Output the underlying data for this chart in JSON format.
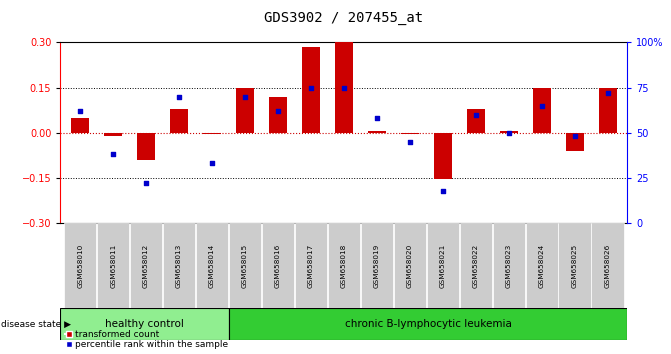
{
  "title": "GDS3902 / 207455_at",
  "samples": [
    "GSM658010",
    "GSM658011",
    "GSM658012",
    "GSM658013",
    "GSM658014",
    "GSM658015",
    "GSM658016",
    "GSM658017",
    "GSM658018",
    "GSM658019",
    "GSM658020",
    "GSM658021",
    "GSM658022",
    "GSM658023",
    "GSM658024",
    "GSM658025",
    "GSM658026"
  ],
  "red_values": [
    0.05,
    -0.01,
    -0.09,
    0.08,
    -0.005,
    0.15,
    0.12,
    0.285,
    0.3,
    0.005,
    -0.005,
    -0.155,
    0.08,
    0.005,
    0.15,
    -0.06,
    0.15
  ],
  "blue_values": [
    62,
    38,
    22,
    70,
    33,
    70,
    62,
    75,
    75,
    58,
    45,
    18,
    60,
    50,
    65,
    48,
    72
  ],
  "healthy_count": 5,
  "leukemia_count": 12,
  "healthy_label": "healthy control",
  "leukemia_label": "chronic B-lymphocytic leukemia",
  "disease_state_label": "disease state",
  "legend_red": "transformed count",
  "legend_blue": "percentile rank within the sample",
  "ylim_left": [
    -0.3,
    0.3
  ],
  "ylim_right": [
    0,
    100
  ],
  "yticks_left": [
    -0.3,
    -0.15,
    0.0,
    0.15,
    0.3
  ],
  "yticks_right": [
    0,
    25,
    50,
    75,
    100
  ],
  "ytick_right_labels": [
    "0",
    "25",
    "50",
    "75",
    "100%"
  ],
  "bar_color": "#cc0000",
  "dot_color": "#0000cc",
  "healthy_bg": "#90ee90",
  "leukemia_bg": "#33cc33",
  "xticklabel_bg": "#cccccc",
  "hline_color": "#cc0000",
  "grid_color": "#000000"
}
